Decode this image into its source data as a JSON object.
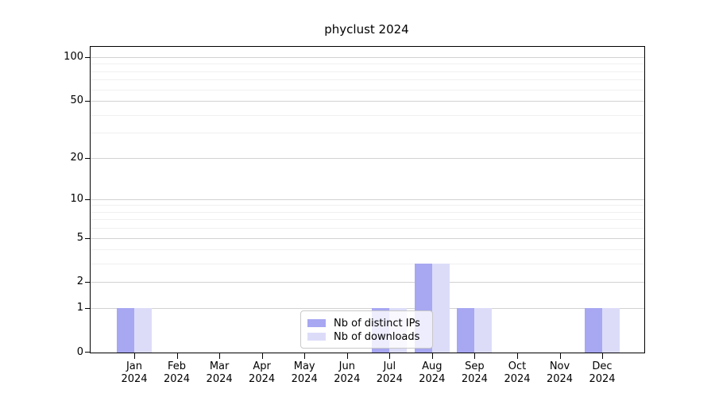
{
  "title": "phyclust 2024",
  "chart_data": {
    "type": "bar",
    "title": "phyclust 2024",
    "categories": [
      "Jan",
      "Feb",
      "Mar",
      "Apr",
      "May",
      "Jun",
      "Jul",
      "Aug",
      "Sep",
      "Oct",
      "Nov",
      "Dec"
    ],
    "year": "2024",
    "series": [
      {
        "name": "Nb of distinct IPs",
        "color": "#a7a7f2",
        "values": [
          1,
          0,
          0,
          0,
          0,
          0,
          1,
          3,
          1,
          0,
          0,
          1
        ]
      },
      {
        "name": "Nb of downloads",
        "color": "#dcdcf9",
        "values": [
          1,
          0,
          0,
          0,
          0,
          0,
          1,
          3,
          1,
          0,
          0,
          1
        ]
      }
    ],
    "y_axis": {
      "scale": "log10(1+x)",
      "ticks": [
        0,
        1,
        2,
        5,
        10,
        20,
        50,
        100
      ],
      "minor_gridlines": [
        3,
        4,
        6,
        7,
        8,
        9,
        30,
        40,
        60,
        70,
        80,
        90
      ],
      "range_top": 100
    },
    "x_axis": {
      "label_lines": 2
    },
    "grid": "on",
    "legend_position": "bottom-center"
  }
}
